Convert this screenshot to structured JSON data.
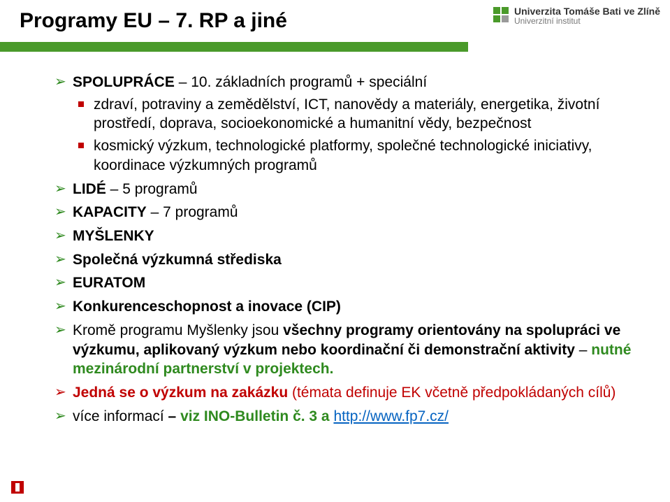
{
  "colors": {
    "green": "#4a9a2a",
    "green_text": "#2f8a1f",
    "red": "#c00000",
    "link": "#0563c1",
    "grey": "#9a9a9a",
    "black": "#000000",
    "white": "#ffffff"
  },
  "header": {
    "title": "Programy EU – 7. RP a jiné",
    "logo_line1": "Univerzita Tomáše Bati ve Zlíně",
    "logo_line2": "Univerzitní institut"
  },
  "items": [
    {
      "arrow": "green",
      "prefix_bold": "SPOLUPRÁCE",
      "rest": " – 10. základních programů + speciální",
      "sub": [
        "zdraví, potraviny a zemědělství, ICT, nanovědy a materiály, energetika, životní prostředí, doprava, socioekonomické a humanitní vědy, bezpečnost",
        "kosmický výzkum, technologické platformy, společné technologické iniciativy, koordinace výzkumných programů"
      ]
    },
    {
      "arrow": "green",
      "prefix_bold": "LIDÉ",
      "rest": " – 5 programů"
    },
    {
      "arrow": "green",
      "prefix_bold": "KAPACITY",
      "rest": " – 7 programů"
    },
    {
      "arrow": "green",
      "prefix_bold": "MYŠLENKY",
      "rest": ""
    },
    {
      "arrow": "green",
      "prefix_bold": "Společná výzkumná střediska",
      "rest": ""
    },
    {
      "arrow": "green",
      "prefix_bold": "EURATOM",
      "rest": ""
    },
    {
      "arrow": "green",
      "prefix_bold": "Konkurenceschopnost a inovace (CIP)",
      "rest": ""
    },
    {
      "arrow": "green",
      "text_parts": [
        {
          "t": "Kromě programu Myšlenky jsou ",
          "cls": ""
        },
        {
          "t": "všechny programy orientovány na spolupráci ve výzkumu, aplikovaný výzkum nebo koordinační či demonstrační aktivity",
          "cls": "bold"
        },
        {
          "t": " – ",
          "cls": ""
        },
        {
          "t": "nutné mezinárodní partnerství v projektech.",
          "cls": "bold green-txt"
        }
      ]
    },
    {
      "arrow": "red",
      "text_parts": [
        {
          "t": "Jedná se o výzkum na zakázku ",
          "cls": "bold red-txt"
        },
        {
          "t": "(témata definuje EK včetně předpokládaných cílů)",
          "cls": "red-txt"
        }
      ]
    },
    {
      "arrow": "green",
      "text_parts": [
        {
          "t": "více informací ",
          "cls": ""
        },
        {
          "t": "– ",
          "cls": "bold"
        },
        {
          "t": "viz INO-Bulletin č. 3 a ",
          "cls": "bold green-txt"
        },
        {
          "t": "http://www.fp7.cz/",
          "cls": "link"
        }
      ]
    }
  ]
}
